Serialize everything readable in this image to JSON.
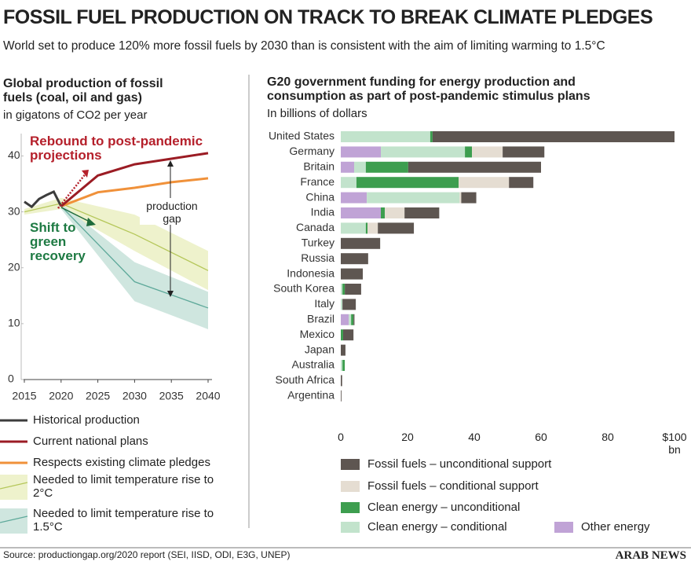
{
  "header": {
    "title": "FOSSIL FUEL PRODUCTION ON TRACK TO BREAK CLIMATE PLEDGES",
    "subtitle": "World set to produce 120% more fossil fuels by 2030 than is consistent with the aim of limiting warming to 1.5°C"
  },
  "footer": {
    "source": "Source: productiongap.org/2020 report (SEI, IISD, ODI, E3G, UNEP)",
    "brand": "ARAB NEWS"
  },
  "chart_data": [
    {
      "type": "line",
      "title": "Global production of fossil fuels (coal, oil and gas)",
      "subtitle": "in gigatons of CO2 per year",
      "xlim": [
        2015,
        2040
      ],
      "xticks": [
        2015,
        2020,
        2025,
        2030,
        2035,
        2040
      ],
      "ylim": [
        0,
        44
      ],
      "yticks": [
        0,
        10,
        20,
        30,
        40
      ],
      "annotations": [
        "Rebound to post-pandemic projections",
        "Shift to green recovery",
        "production gap"
      ],
      "series": [
        {
          "name": "Historical production",
          "color": "#3c3c3c",
          "x": [
            2015,
            2016,
            2017,
            2018,
            2019,
            2020
          ],
          "values": [
            31.8,
            30.9,
            32.3,
            33.0,
            33.6,
            31.0
          ]
        },
        {
          "name": "Current national plans",
          "color": "#9b1c24",
          "x": [
            2020,
            2025,
            2030,
            2035,
            2040
          ],
          "values": [
            31.0,
            36.5,
            38.5,
            39.5,
            40.5
          ]
        },
        {
          "name": "Respects existing climate pledges",
          "color": "#f0913a",
          "x": [
            2020,
            2025,
            2030,
            2035,
            2040
          ],
          "values": [
            31.0,
            33.5,
            34.3,
            35.3,
            36.0
          ]
        },
        {
          "name": "Needed to limit temperature rise to 2°C",
          "color": "#b5c75a",
          "band_color": "#eef2cc",
          "x": [
            2015,
            2020,
            2030,
            2040
          ],
          "values": [
            30.0,
            31.5,
            26.0,
            19.5
          ],
          "upper": [
            30.5,
            32.5,
            29.5,
            23.0
          ],
          "lower": [
            29.5,
            30.5,
            23.0,
            16.0
          ]
        },
        {
          "name": "Needed to limit temperature rise to 1.5°C",
          "color": "#5ea99a",
          "band_color": "#cfe6df",
          "x": [
            2020,
            2030,
            2040
          ],
          "values": [
            31.0,
            17.5,
            12.8
          ],
          "upper": [
            31.5,
            21.0,
            15.7
          ],
          "lower": [
            30.5,
            14.0,
            9.0
          ]
        }
      ]
    },
    {
      "type": "stacked-bar-horizontal",
      "title": "G20 government funding for energy production and consumption as part of post-pandemic stimulus plans",
      "subtitle": "In billions of dollars",
      "categories": [
        "United States",
        "Germany",
        "Britain",
        "France",
        "China",
        "India",
        "Canada",
        "Turkey",
        "Russia",
        "Indonesia",
        "South Korea",
        "Italy",
        "Brazil",
        "Mexico",
        "Japan",
        "Australia",
        "South Africa",
        "Argentina"
      ],
      "xlim": [
        0,
        100
      ],
      "xticks": [
        0,
        20,
        40,
        60,
        80,
        {
          "value": 100,
          "label": "$100 bn"
        }
      ],
      "series": [
        {
          "name": "Other energy",
          "color": "#c0a3d6",
          "values": [
            null,
            12.0,
            4.0,
            null,
            7.8,
            12.0,
            null,
            null,
            null,
            null,
            null,
            null,
            2.4,
            null,
            null,
            null,
            null,
            null
          ]
        },
        {
          "name": "Clean energy – conditional",
          "color": "#c2e3cc",
          "values": [
            26.8,
            25.2,
            3.5,
            4.7,
            27.8,
            null,
            7.5,
            null,
            null,
            null,
            0.5,
            0.5,
            0.7,
            null,
            null,
            0.5,
            null,
            null
          ]
        },
        {
          "name": "Clean energy – unconditional",
          "color": "#3d9e4f",
          "values": [
            0.7,
            2.1,
            12.7,
            30.6,
            null,
            1.2,
            0.5,
            null,
            null,
            null,
            0.7,
            null,
            0.7,
            0.7,
            null,
            0.7,
            null,
            null
          ]
        },
        {
          "name": "Fossil fuels – conditional support",
          "color": "#e5ddd2",
          "values": [
            null,
            9.2,
            null,
            15.1,
            0.5,
            5.9,
            3.1,
            null,
            null,
            null,
            null,
            null,
            null,
            null,
            null,
            null,
            null,
            null
          ]
        },
        {
          "name": "Fossil fuels – unconditional support",
          "color": "#5e5651",
          "values": [
            72.5,
            12.5,
            39.8,
            7.3,
            4.5,
            10.4,
            10.8,
            11.8,
            8.2,
            6.6,
            4.9,
            4.0,
            0.3,
            3.1,
            1.4,
            null,
            0.4,
            0.2
          ]
        }
      ]
    }
  ]
}
